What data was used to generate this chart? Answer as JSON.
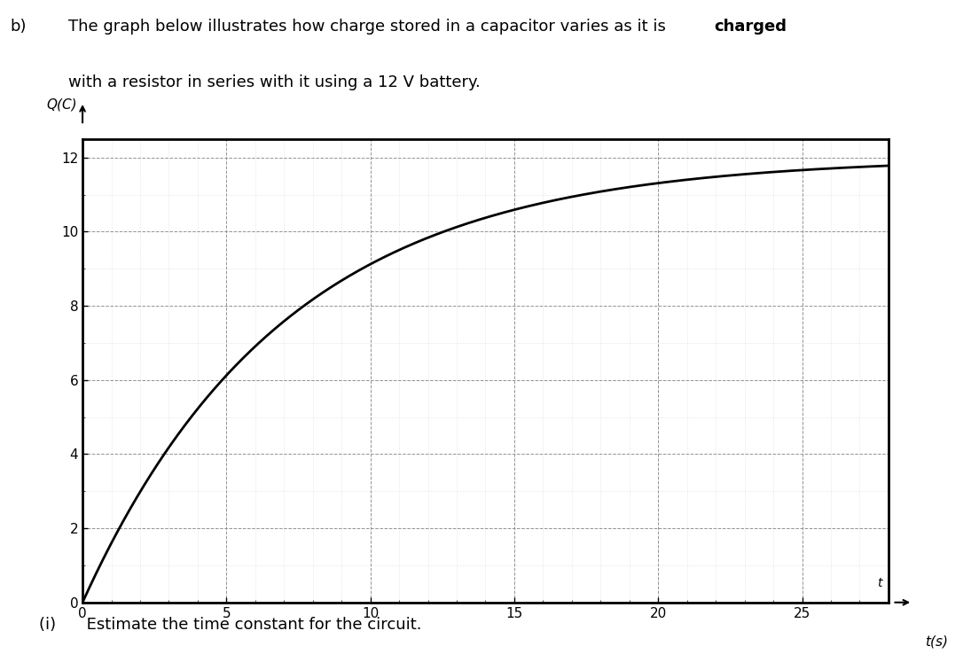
{
  "ylabel": "Q(C)",
  "xlabel_right": "t(s)",
  "Q_max": 12,
  "tau": 7,
  "t_max": 28,
  "y_ticks": [
    0,
    2,
    4,
    6,
    8,
    10,
    12
  ],
  "x_ticks": [
    0,
    5,
    10,
    15,
    20,
    25
  ],
  "curve_color": "#000000",
  "grid_major_color": "#888888",
  "grid_minor_color": "#bbbbbb",
  "bg_color": "#ffffff",
  "axis_color": "#000000",
  "fig_width": 10.95,
  "fig_height": 7.47,
  "dpi": 100,
  "header_line1_normal": "The graph below illustrates how charge stored in a capacitor varies as it is ",
  "header_line1_bold": "charged",
  "header_line2": "with a resistor in series with it using a 12 V battery.",
  "header_b": "b)",
  "footer_text": "(i)      Estimate the time constant for the circuit."
}
